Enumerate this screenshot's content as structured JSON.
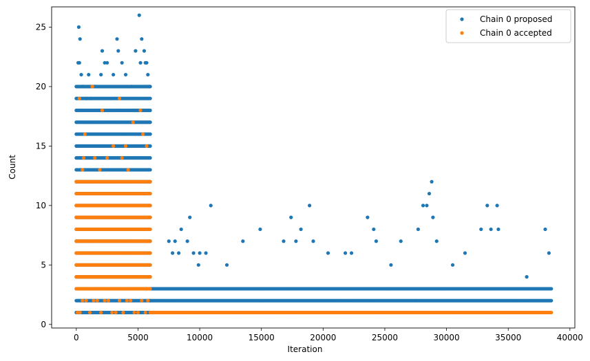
{
  "chart_data": {
    "type": "scatter",
    "title": "",
    "xlabel": "Iteration",
    "ylabel": "Count",
    "xlim": [
      -2000,
      40400
    ],
    "ylim": [
      -0.3,
      26.7
    ],
    "x_ticks": [
      0,
      5000,
      10000,
      15000,
      20000,
      25000,
      30000,
      35000,
      40000
    ],
    "y_ticks": [
      0,
      5,
      10,
      15,
      20,
      25
    ],
    "grid": false,
    "legend_position": "top-right",
    "series": [
      {
        "name": "Chain 0 proposed",
        "color": "#1f77b4",
        "segments": [
          {
            "x_range": [
              0,
              6000
            ],
            "values": [
              1,
              2,
              3,
              4,
              5,
              6,
              7,
              8,
              9,
              10,
              11,
              12,
              13,
              14,
              15,
              16,
              17,
              18,
              19,
              20
            ]
          },
          {
            "x_range": [
              6000,
              38500
            ],
            "values": [
              2,
              3
            ]
          }
        ],
        "scattered": {
          "x": [
            200,
            300,
            250,
            400,
            150,
            500,
            800,
            1200,
            1500,
            2000,
            2100,
            2300,
            3300,
            3400,
            3700,
            4000,
            5100,
            5300,
            5500,
            5600,
            5700,
            5800,
            5900,
            4500,
            4800,
            1000,
            3000,
            2500,
            600,
            5200,
            9200,
            10900,
            8500,
            9000,
            7500,
            8000,
            9500,
            10000,
            10500,
            13500,
            14900,
            16800,
            17400,
            18200,
            18900,
            19200,
            20400,
            17800,
            23600,
            24100,
            24300,
            22300,
            26300,
            27700,
            28100,
            28400,
            28600,
            28800,
            28900,
            29200,
            30500,
            31500,
            32800,
            33300,
            33600,
            34100,
            34200,
            38000,
            38300,
            36500,
            12200,
            7800,
            8300,
            9900,
            21800,
            25500
          ],
          "y": [
            25,
            24,
            22,
            21,
            22,
            20,
            19,
            19,
            20,
            21,
            23,
            22,
            24,
            23,
            22,
            21,
            26,
            24,
            23,
            22,
            22,
            21,
            20,
            20,
            23,
            21,
            21,
            22,
            20,
            22,
            9,
            10,
            8,
            7,
            7,
            7,
            6,
            6,
            6,
            7,
            8,
            7,
            9,
            8,
            10,
            7,
            6,
            7,
            9,
            8,
            7,
            6,
            7,
            8,
            10,
            10,
            11,
            12,
            9,
            7,
            5,
            6,
            8,
            10,
            8,
            10,
            8,
            8,
            6,
            4,
            5,
            6,
            6,
            5,
            6,
            5
          ]
        }
      },
      {
        "name": "Chain 0 accepted",
        "color": "#ff7f0e",
        "segments": [
          {
            "x_range": [
              0,
              6000
            ],
            "values": [
              3,
              4,
              5,
              6,
              7,
              8,
              9,
              10,
              11,
              12
            ]
          },
          {
            "x_range": [
              6000,
              38500
            ],
            "values": [
              1
            ]
          }
        ],
        "scattered": {
          "x": [
            100,
            300,
            500,
            800,
            1100,
            1400,
            1700,
            2000,
            2300,
            2600,
            2900,
            3200,
            3500,
            3800,
            4100,
            4400,
            4700,
            5000,
            5300,
            5600,
            5800,
            250,
            1300,
            3500,
            2100,
            4600,
            5200,
            700,
            4000,
            3000,
            1500,
            2500,
            500,
            5700,
            600,
            1900,
            4200,
            3700,
            5400
          ],
          "y": [
            1,
            1,
            2,
            2,
            1,
            2,
            2,
            1,
            2,
            2,
            1,
            1,
            2,
            1,
            2,
            2,
            1,
            1,
            2,
            1,
            2,
            19,
            20,
            19,
            18,
            17,
            18,
            16,
            15,
            15,
            14,
            14,
            13,
            15,
            14,
            13,
            13,
            14,
            16
          ]
        }
      }
    ]
  }
}
